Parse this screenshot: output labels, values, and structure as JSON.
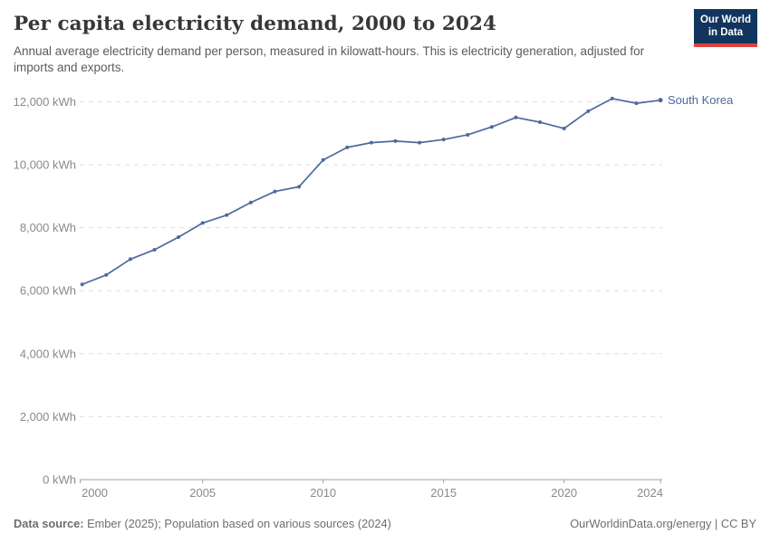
{
  "header": {
    "title": "Per capita electricity demand, 2000 to 2024",
    "subtitle": "Annual average electricity demand per person, measured in kilowatt-hours. This is electricity generation, adjusted for imports and exports.",
    "logo": {
      "line1": "Our World",
      "line2": "in Data"
    }
  },
  "chart_data": {
    "type": "line",
    "title": "Per capita electricity demand, 2000 to 2024",
    "unit": "kWh",
    "x": [
      2000,
      2001,
      2002,
      2003,
      2004,
      2005,
      2006,
      2007,
      2008,
      2009,
      2010,
      2011,
      2012,
      2013,
      2014,
      2015,
      2016,
      2017,
      2018,
      2019,
      2020,
      2021,
      2022,
      2023,
      2024
    ],
    "series": [
      {
        "name": "South Korea",
        "color": "#4C6A9C",
        "values": [
          6200,
          6500,
          7000,
          7300,
          7700,
          8150,
          8400,
          8800,
          9150,
          9300,
          10150,
          10550,
          10700,
          10750,
          10700,
          10800,
          10950,
          11200,
          11500,
          11350,
          11150,
          11700,
          12100,
          11950,
          12050
        ]
      }
    ],
    "ylim": [
      0,
      12000
    ],
    "xlim": [
      2000,
      2024
    ],
    "grid": "horizontal-dashed",
    "legend_position": "right-of-line",
    "yticks": [
      {
        "v": 0,
        "label": "0 kWh"
      },
      {
        "v": 2000,
        "label": "2,000 kWh"
      },
      {
        "v": 4000,
        "label": "4,000 kWh"
      },
      {
        "v": 6000,
        "label": "6,000 kWh"
      },
      {
        "v": 8000,
        "label": "8,000 kWh"
      },
      {
        "v": 10000,
        "label": "10,000 kWh"
      },
      {
        "v": 12000,
        "label": "12,000 kWh"
      }
    ],
    "xticks": [
      {
        "v": 2000,
        "label": "2000",
        "anchor": "start"
      },
      {
        "v": 2005,
        "label": "2005",
        "anchor": "middle"
      },
      {
        "v": 2010,
        "label": "2010",
        "anchor": "middle"
      },
      {
        "v": 2015,
        "label": "2015",
        "anchor": "middle"
      },
      {
        "v": 2020,
        "label": "2020",
        "anchor": "middle"
      },
      {
        "v": 2024,
        "label": "2024",
        "anchor": "end"
      }
    ]
  },
  "footer": {
    "source_label": "Data source:",
    "source_text": " Ember (2025); Population based on various sources (2024)",
    "right_text": "OurWorldinData.org/energy | CC BY"
  }
}
